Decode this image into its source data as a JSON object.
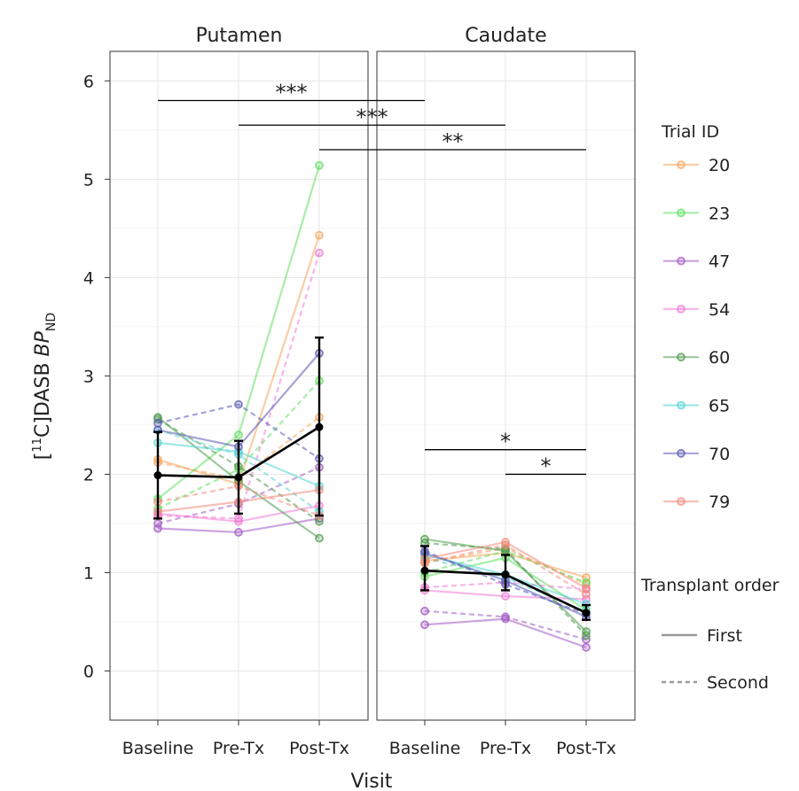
{
  "chart_data": {
    "type": "line",
    "ylabel": {
      "prefix": "[",
      "sup": "11",
      "middle": "C]DASB ",
      "italic": "BP",
      "sub": "ND"
    },
    "xlabel": "Visit",
    "categories": [
      "Baseline",
      "Pre-Tx",
      "Post-Tx"
    ],
    "ylim": [
      -0.5,
      6.3
    ],
    "yticks": [
      "0",
      "1",
      "2",
      "3",
      "4",
      "5",
      "6"
    ],
    "ytick_values": [
      0,
      1,
      2,
      3,
      4,
      5,
      6
    ],
    "legend": {
      "color_title": "Trial ID",
      "linetype_title": "Transplant order",
      "linetypes": [
        {
          "label": "First",
          "dash": "solid"
        },
        {
          "label": "Second",
          "dash": "dashed"
        }
      ]
    },
    "colors": {
      "20": "#f5a65b",
      "23": "#5fe05f",
      "47": "#a259c4",
      "54": "#f07ad6",
      "60": "#4f9a4f",
      "65": "#55d4d4",
      "70": "#5a5ab4",
      "79": "#f08a7a"
    },
    "trial_ids": [
      "20",
      "23",
      "47",
      "54",
      "60",
      "65",
      "70",
      "79"
    ],
    "panels": [
      {
        "name": "Putamen",
        "series": [
          {
            "id": "20",
            "order": "first",
            "values": [
              2.15,
              1.9,
              4.43
            ]
          },
          {
            "id": "20",
            "order": "second",
            "values": [
              2.12,
              1.95,
              2.58
            ]
          },
          {
            "id": "23",
            "order": "first",
            "values": [
              1.75,
              2.4,
              5.14
            ]
          },
          {
            "id": "23",
            "order": "second",
            "values": [
              1.65,
              2.05,
              2.95
            ]
          },
          {
            "id": "47",
            "order": "first",
            "values": [
              1.45,
              1.41,
              1.55
            ]
          },
          {
            "id": "47",
            "order": "second",
            "values": [
              1.5,
              1.7,
              2.07
            ]
          },
          {
            "id": "54",
            "order": "first",
            "values": [
              1.6,
              1.52,
              1.68
            ]
          },
          {
            "id": "54",
            "order": "second",
            "values": [
              1.58,
              1.55,
              4.25
            ]
          },
          {
            "id": "60",
            "order": "first",
            "values": [
              2.58,
              1.93,
              1.35
            ]
          },
          {
            "id": "60",
            "order": "second",
            "values": [
              2.56,
              2.08,
              1.52
            ]
          },
          {
            "id": "65",
            "order": "first",
            "values": [
              2.32,
              2.23,
              1.88
            ]
          },
          {
            "id": "65",
            "order": "second",
            "values": [
              2.45,
              2.2,
              1.62
            ]
          },
          {
            "id": "70",
            "order": "first",
            "values": [
              2.45,
              2.28,
              3.23
            ]
          },
          {
            "id": "70",
            "order": "second",
            "values": [
              2.52,
              2.71,
              2.16
            ]
          },
          {
            "id": "79",
            "order": "first",
            "values": [
              1.62,
              1.72,
              1.84
            ]
          },
          {
            "id": "79",
            "order": "second",
            "values": [
              1.72,
              1.88,
              1.58
            ]
          }
        ],
        "mean": {
          "values": [
            1.99,
            1.97,
            2.48
          ],
          "err_low": [
            1.55,
            1.6,
            1.58
          ],
          "err_high": [
            2.43,
            2.34,
            3.39
          ]
        },
        "brackets": [
          {
            "from": 0,
            "to": 3.4,
            "y": 5.8,
            "label": "***"
          },
          {
            "from": 1,
            "to": 4.4,
            "y": 5.55,
            "label": "***"
          },
          {
            "from": 2,
            "to": 5.4,
            "y": 5.3,
            "label": "**"
          }
        ]
      },
      {
        "name": "Caudate",
        "series": [
          {
            "id": "20",
            "order": "first",
            "values": [
              1.12,
              1.2,
              0.95
            ]
          },
          {
            "id": "20",
            "order": "second",
            "values": [
              1.1,
              1.25,
              0.88
            ]
          },
          {
            "id": "23",
            "order": "first",
            "values": [
              0.96,
              1.15,
              0.62
            ]
          },
          {
            "id": "23",
            "order": "second",
            "values": [
              1.0,
              1.22,
              0.9
            ]
          },
          {
            "id": "47",
            "order": "first",
            "values": [
              0.47,
              0.53,
              0.24
            ]
          },
          {
            "id": "47",
            "order": "second",
            "values": [
              0.61,
              0.55,
              0.32
            ]
          },
          {
            "id": "54",
            "order": "first",
            "values": [
              0.82,
              0.76,
              0.73
            ]
          },
          {
            "id": "54",
            "order": "second",
            "values": [
              0.85,
              0.9,
              0.83
            ]
          },
          {
            "id": "60",
            "order": "first",
            "values": [
              1.34,
              1.22,
              0.4
            ]
          },
          {
            "id": "60",
            "order": "second",
            "values": [
              1.3,
              1.24,
              0.36
            ]
          },
          {
            "id": "65",
            "order": "first",
            "values": [
              1.18,
              0.98,
              0.68
            ]
          },
          {
            "id": "65",
            "order": "second",
            "values": [
              1.15,
              0.95,
              0.6
            ]
          },
          {
            "id": "70",
            "order": "first",
            "values": [
              1.2,
              0.92,
              0.55
            ]
          },
          {
            "id": "70",
            "order": "second",
            "values": [
              1.22,
              0.88,
              0.58
            ]
          },
          {
            "id": "79",
            "order": "first",
            "values": [
              1.14,
              1.31,
              0.84
            ]
          },
          {
            "id": "79",
            "order": "second",
            "values": [
              1.1,
              1.28,
              0.78
            ]
          }
        ],
        "mean": {
          "values": [
            1.02,
            0.98,
            0.59
          ],
          "err_low": [
            0.82,
            0.82,
            0.52
          ],
          "err_high": [
            1.27,
            1.18,
            0.67
          ]
        },
        "brackets": [
          {
            "from": 0,
            "to": 2,
            "y": 2.25,
            "label": "*"
          },
          {
            "from": 1,
            "to": 2,
            "y": 2.0,
            "label": "*"
          }
        ]
      }
    ]
  }
}
